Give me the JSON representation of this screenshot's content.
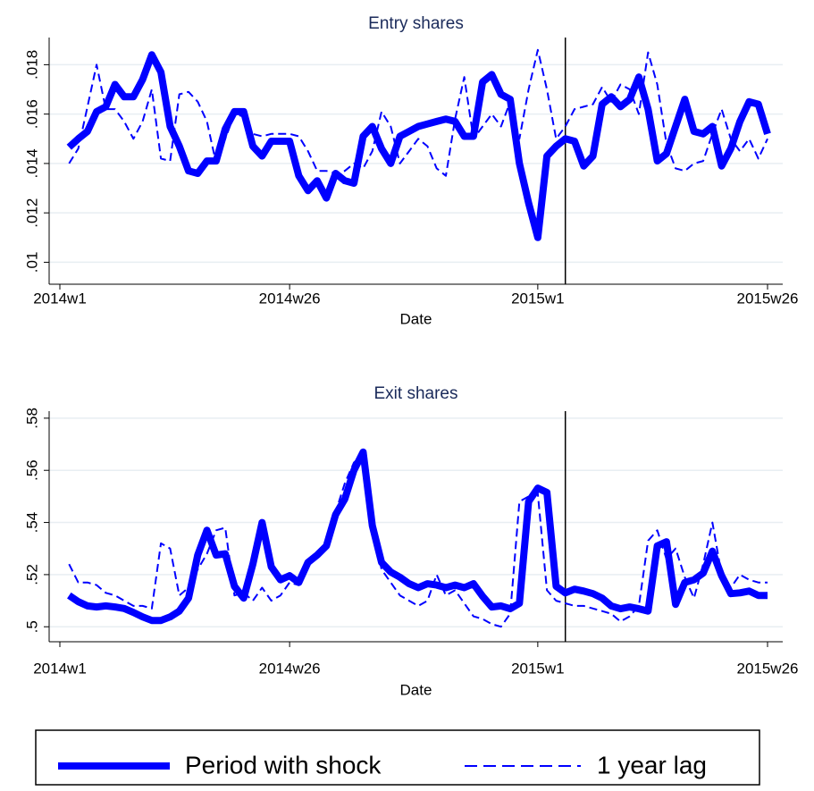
{
  "chart_data": [
    {
      "type": "line",
      "title": "Entry shares",
      "xlabel": "Date",
      "categories": [
        "2014w1",
        null,
        null,
        null,
        null,
        null,
        null,
        null,
        null,
        null,
        null,
        null,
        null,
        null,
        null,
        null,
        null,
        null,
        null,
        null,
        null,
        null,
        null,
        null,
        null,
        "2014w26",
        null,
        null,
        null,
        null,
        null,
        null,
        null,
        null,
        null,
        null,
        null,
        null,
        null,
        null,
        null,
        null,
        null,
        null,
        null,
        null,
        null,
        null,
        null,
        null,
        null,
        null,
        "2015w1",
        null,
        null,
        null,
        null,
        null,
        null,
        null,
        null,
        null,
        null,
        null,
        null,
        null,
        null,
        null,
        null,
        null,
        null,
        null,
        null,
        null,
        null,
        null,
        null,
        "2015w26"
      ],
      "series": [
        {
          "name": "Period with shock",
          "color": "#0000ff",
          "line_width": 8,
          "dashed": false,
          "values": [
            null,
            0.01466,
            0.015,
            0.0153,
            0.0161,
            0.0163,
            0.0172,
            0.0167,
            0.0167,
            0.0174,
            0.0184,
            0.0177,
            0.0155,
            0.0147,
            0.0137,
            0.0136,
            0.0141,
            0.0141,
            0.0154,
            0.0161,
            0.0161,
            0.0147,
            0.0143,
            0.0149,
            0.0149,
            0.0149,
            0.0135,
            0.0129,
            0.0133,
            0.0126,
            0.0136,
            0.0133,
            0.0132,
            0.0151,
            0.0155,
            0.0146,
            0.014,
            0.0151,
            0.0153,
            0.0155,
            0.0156,
            0.0157,
            0.0158,
            0.0157,
            0.0151,
            0.0151,
            0.0173,
            0.0176,
            0.0168,
            0.0166,
            0.014,
            0.0124,
            0.011,
            0.0143,
            0.0147,
            0.015,
            0.0149,
            0.0139,
            0.0143,
            0.0164,
            0.0167,
            0.0163,
            0.0166,
            0.0175,
            0.0162,
            0.0141,
            0.0144,
            0.0155,
            0.0166,
            0.0153,
            0.0152,
            0.0155,
            0.0139,
            0.0146,
            0.0157,
            0.0165,
            0.0164,
            0.0152
          ]
        },
        {
          "name": "1 year lag",
          "color": "#0000ff",
          "line_width": 2,
          "dashed": true,
          "values": [
            null,
            0.014,
            0.0146,
            0.0163,
            0.018,
            0.0162,
            0.0162,
            0.0157,
            0.015,
            0.0157,
            0.017,
            0.0142,
            0.0141,
            0.0168,
            0.0169,
            0.0165,
            0.0157,
            0.014,
            0.015,
            0.016,
            0.0159,
            0.0152,
            0.0151,
            0.0152,
            0.0152,
            0.0152,
            0.0151,
            0.0145,
            0.0137,
            0.0137,
            0.0136,
            0.0137,
            0.014,
            0.0138,
            0.0145,
            0.0161,
            0.0155,
            0.014,
            0.0145,
            0.015,
            0.0147,
            0.0138,
            0.0135,
            0.0158,
            0.0175,
            0.015,
            0.0155,
            0.016,
            0.0155,
            0.0165,
            0.015,
            0.017,
            0.0186,
            0.017,
            0.015,
            0.0155,
            0.0162,
            0.0163,
            0.0164,
            0.0171,
            0.0165,
            0.0172,
            0.017,
            0.016,
            0.0185,
            0.0172,
            0.0148,
            0.0138,
            0.0137,
            0.014,
            0.0141,
            0.0152,
            0.0162,
            0.015,
            0.0145,
            0.015,
            0.0142,
            0.015
          ]
        }
      ],
      "ylim": [
        0.0094,
        0.0191
      ],
      "yticks": [
        {
          "value": 0.01,
          "label": ".01"
        },
        {
          "value": 0.012,
          "label": ".012"
        },
        {
          "value": 0.014,
          "label": ".014"
        },
        {
          "value": 0.016,
          "label": ".016"
        },
        {
          "value": 0.018,
          "label": ".018"
        }
      ],
      "xline": 55,
      "grid": true
    },
    {
      "type": "line",
      "title": "Exit shares",
      "xlabel": "Date",
      "categories": [
        "2014w1",
        null,
        null,
        null,
        null,
        null,
        null,
        null,
        null,
        null,
        null,
        null,
        null,
        null,
        null,
        null,
        null,
        null,
        null,
        null,
        null,
        null,
        null,
        null,
        null,
        "2014w26",
        null,
        null,
        null,
        null,
        null,
        null,
        null,
        null,
        null,
        null,
        null,
        null,
        null,
        null,
        null,
        null,
        null,
        null,
        null,
        null,
        null,
        null,
        null,
        null,
        null,
        null,
        "2015w1",
        null,
        null,
        null,
        null,
        null,
        null,
        null,
        null,
        null,
        null,
        null,
        null,
        null,
        null,
        null,
        null,
        null,
        null,
        null,
        null,
        null,
        null,
        null,
        null,
        "2015w26"
      ],
      "series": [
        {
          "name": "Period with shock",
          "color": "#0000ff",
          "line_width": 8,
          "dashed": false,
          "values": [
            null,
            0.512,
            0.5096,
            0.508,
            0.5076,
            0.508,
            0.5076,
            0.507,
            0.5055,
            0.5038,
            0.5024,
            0.5024,
            0.5038,
            0.506,
            0.511,
            0.5275,
            0.537,
            0.5275,
            0.528,
            0.5155,
            0.511,
            0.524,
            0.54,
            0.523,
            0.518,
            0.5196,
            0.517,
            0.5247,
            0.5275,
            0.531,
            0.543,
            0.549,
            0.56,
            0.567,
            0.5388,
            0.5247,
            0.521,
            0.519,
            0.5165,
            0.515,
            0.5165,
            0.516,
            0.515,
            0.516,
            0.515,
            0.5165,
            0.5117,
            0.5076,
            0.508,
            0.5069,
            0.509,
            0.548,
            0.5532,
            0.5515,
            0.5155,
            0.513,
            0.5144,
            0.5137,
            0.5127,
            0.511,
            0.508,
            0.5069,
            0.5076,
            0.5069,
            0.506,
            0.531,
            0.5326,
            0.5086,
            0.517,
            0.518,
            0.5206,
            0.529,
            0.5196,
            0.5127,
            0.513,
            0.5137,
            0.512,
            0.512
          ]
        },
        {
          "name": "1 year lag",
          "color": "#0000ff",
          "line_width": 2,
          "dashed": true,
          "values": [
            null,
            0.524,
            0.517,
            0.517,
            0.516,
            0.513,
            0.512,
            0.51,
            0.508,
            0.508,
            0.507,
            0.532,
            0.53,
            0.512,
            0.515,
            0.522,
            0.528,
            0.537,
            0.538,
            0.512,
            0.513,
            0.51,
            0.515,
            0.51,
            0.512,
            0.517,
            0.516,
            0.523,
            0.528,
            0.53,
            0.544,
            0.555,
            0.563,
            0.566,
            0.54,
            0.522,
            0.517,
            0.512,
            0.51,
            0.508,
            0.51,
            0.52,
            0.512,
            0.514,
            0.509,
            0.504,
            0.503,
            0.501,
            0.5,
            0.505,
            0.548,
            0.55,
            0.551,
            0.514,
            0.51,
            0.509,
            0.508,
            0.508,
            0.507,
            0.506,
            0.505,
            0.502,
            0.504,
            0.508,
            0.533,
            0.537,
            0.526,
            0.53,
            0.519,
            0.511,
            0.524,
            0.54,
            0.52,
            0.515,
            0.52,
            0.518,
            0.517,
            0.517
          ]
        }
      ],
      "ylim": [
        0.497,
        0.5827
      ],
      "yticks": [
        {
          "value": 0.5,
          "label": ".5"
        },
        {
          "value": 0.52,
          "label": ".52"
        },
        {
          "value": 0.54,
          "label": ".54"
        },
        {
          "value": 0.56,
          "label": ".56"
        },
        {
          "value": 0.58,
          "label": ".58"
        }
      ],
      "xline": 55,
      "grid": true
    }
  ]
}
